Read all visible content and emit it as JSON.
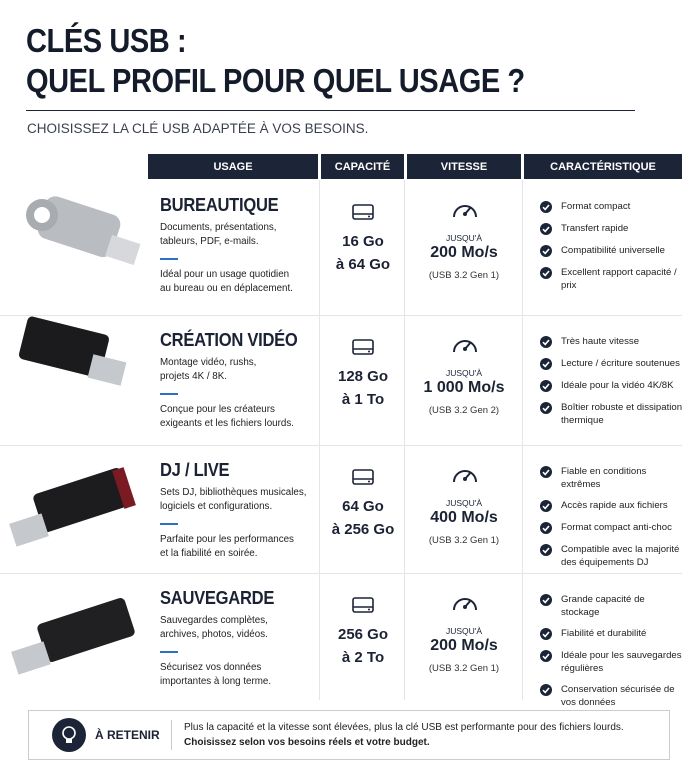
{
  "title": [
    "CLÉS USB :",
    "QUEL PROFIL POUR QUEL USAGE ?"
  ],
  "subtitle": "CHOISISSEZ LA CLÉ USB ADAPTÉE À VOS BESOINS.",
  "table": {
    "headers": [
      "USAGE",
      "CAPACITÉ",
      "VITESSE",
      "CARACTÉRISTIQUE"
    ],
    "rows": [
      {
        "name": "BUREAUTIQUE",
        "desc": [
          "Documents, présentations,",
          "tableurs, PDF, e-mails."
        ],
        "note": [
          "Idéal pour un usage quotidien",
          "au bureau ou en déplacement."
        ],
        "capacity": [
          "16 Go",
          "à 64 Go"
        ],
        "speed_prefix": "JUSQU'À",
        "speed": "200 Mo/s",
        "speed_note": "(USB 3.2 Gen 1)",
        "features": [
          "Format compact",
          "Transfert rapide",
          "Compatibilité universelle",
          "Excellent rapport capacité / prix"
        ]
      },
      {
        "name": "CRÉATION VIDÉO",
        "desc": [
          "Montage vidéo, rushs,",
          "projets 4K / 8K."
        ],
        "note": [
          "Conçue pour les créateurs",
          "exigeants et les fichiers lourds."
        ],
        "capacity": [
          "128 Go",
          "à 1 To"
        ],
        "speed_prefix": "JUSQU'À",
        "speed": "1 000 Mo/s",
        "speed_note": "(USB 3.2 Gen 2)",
        "features": [
          "Très haute vitesse",
          "Lecture / écriture soutenues",
          "Idéale pour la vidéo 4K/8K",
          "Boîtier robuste et dissipation thermique"
        ]
      },
      {
        "name": "DJ / LIVE",
        "desc": [
          "Sets DJ, bibliothèques musicales,",
          "logiciels et configurations."
        ],
        "note": [
          "Parfaite pour les performances",
          "et la fiabilité en soirée."
        ],
        "capacity": [
          "64 Go",
          "à 256 Go"
        ],
        "speed_prefix": "JUSQU'À",
        "speed": "400 Mo/s",
        "speed_note": "(USB 3.2 Gen 1)",
        "features": [
          "Fiable en conditions extrêmes",
          "Accès rapide aux fichiers",
          "Format compact anti-choc",
          "Compatible avec la majorité des équipements DJ"
        ]
      },
      {
        "name": "SAUVEGARDE",
        "desc": [
          "Sauvegardes complètes,",
          "archives, photos, vidéos."
        ],
        "note": [
          "Sécurisez vos données",
          "importantes à long terme."
        ],
        "capacity": [
          "256 Go",
          "à 2 To"
        ],
        "speed_prefix": "JUSQU'À",
        "speed": "200 Mo/s",
        "speed_note": "(USB 3.2 Gen 1)",
        "features": [
          "Grande capacité de stockage",
          "Fiabilité et durabilité",
          "Idéale pour les sauvegardes régulières",
          "Conservation sécurisée de vos données"
        ]
      }
    ]
  },
  "footer": {
    "label": "À RETENIR",
    "text": "Plus la capacité et la vitesse sont élevées, plus la clé USB est performante pour des fichiers lourds.",
    "emphasis": "Choisissez selon vos besoins réels et votre budget."
  }
}
